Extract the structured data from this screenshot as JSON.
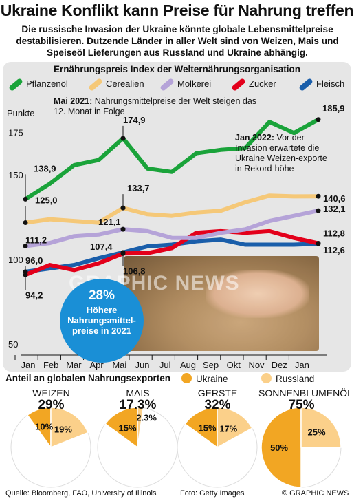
{
  "title": "Ukraine Konflikt kann Preise für Nahrung treffen",
  "subtitle": "Die russische Invasion der Ukraine könnte globale Lebensmittelpreise destabilisieren. Dutzende Länder in aller Welt sind von Weizen, Mais und Speiseöl Lieferungen aus Russland und Ukraine abhängig.",
  "chart_title": "Ernährungspreis Index der Welternährungsorganisation",
  "ylabel": "Punkte",
  "colors": {
    "pflanzenoel": "#1aa33a",
    "cerealien": "#f5c878",
    "molkerei": "#b5a3d8",
    "zucker": "#e3001b",
    "fleisch": "#1a5eaa",
    "ukraine": "#f2a623",
    "russland": "#fbd08a"
  },
  "chart_data": {
    "type": "line",
    "categories": [
      "Jan",
      "Feb",
      "Mar",
      "Apr",
      "Mai",
      "Jun",
      "Jul",
      "Aug",
      "Sep",
      "Okt",
      "Nov",
      "Dez",
      "Jan"
    ],
    "ylim": [
      50,
      185
    ],
    "yticks": [
      50,
      100,
      150,
      175
    ],
    "series": [
      {
        "name": "Pflanzenöl",
        "key": "pflanzenoel",
        "values": [
          138.9,
          148,
          159,
          162,
          174.9,
          157,
          155,
          166,
          168,
          169,
          184.5,
          178,
          185.9
        ]
      },
      {
        "name": "Cerealien",
        "key": "cerealien",
        "values": [
          125.0,
          127,
          126,
          125,
          133.7,
          130,
          129,
          131,
          132,
          137,
          141,
          140.5,
          140.6
        ]
      },
      {
        "name": "Molkerei",
        "key": "molkerei",
        "values": [
          111.2,
          113,
          117,
          118,
          121.1,
          120,
          116,
          116,
          119,
          121,
          126,
          129,
          132.1
        ]
      },
      {
        "name": "Zucker",
        "key": "zucker",
        "values": [
          94.2,
          100,
          97,
          101,
          106.8,
          107,
          110,
          119,
          120,
          119,
          120,
          116,
          112.8
        ]
      },
      {
        "name": "Fleisch",
        "key": "fleisch",
        "values": [
          96.0,
          98,
          100,
          104,
          107.4,
          111,
          112,
          114,
          115,
          112,
          112,
          112,
          112.6
        ]
      }
    ],
    "labels": [
      {
        "series": "pflanzenoel",
        "index": 0,
        "text": "138,9"
      },
      {
        "series": "pflanzenoel",
        "index": 4,
        "text": "174,9"
      },
      {
        "series": "pflanzenoel",
        "index": 12,
        "text": "185,9"
      },
      {
        "series": "cerealien",
        "index": 0,
        "text": "125,0"
      },
      {
        "series": "cerealien",
        "index": 4,
        "text": "133,7"
      },
      {
        "series": "cerealien",
        "index": 12,
        "text": "140,6"
      },
      {
        "series": "molkerei",
        "index": 0,
        "text": "111,2"
      },
      {
        "series": "molkerei",
        "index": 4,
        "text": "121,1"
      },
      {
        "series": "molkerei",
        "index": 12,
        "text": "132,1"
      },
      {
        "series": "zucker",
        "index": 0,
        "text": "94,2"
      },
      {
        "series": "zucker",
        "index": 4,
        "text": "106,8"
      },
      {
        "series": "zucker",
        "index": 12,
        "text": "112,8"
      },
      {
        "series": "fleisch",
        "index": 0,
        "text": "96,0"
      },
      {
        "series": "fleisch",
        "index": 4,
        "text": "107,4"
      },
      {
        "series": "fleisch",
        "index": 12,
        "text": "112,6"
      }
    ]
  },
  "annotations": {
    "mai_bold": "Mai 2021:",
    "mai_text": " Nahrungsmittelpreise der Welt steigen das 12. Monat in Folge",
    "jan_bold": "Jan 2022:",
    "jan_text": " Vor der Invasion erwartete die Ukraine Weizen-exporte in Rekord-höhe"
  },
  "callout": {
    "big": "28%",
    "small": "Höhere Nahrungsmittel-preise in 2021"
  },
  "watermark": "GRAPHIC NEWS",
  "share": {
    "title": "Anteil an globalen Nahrungsexporten",
    "ukraine_label": "Ukraine",
    "russland_label": "Russland",
    "pies": [
      {
        "name": "WEIZEN",
        "total": "29%",
        "ukraine": 10,
        "russland": 19,
        "ukraine_label": "10%",
        "russland_label": "19%"
      },
      {
        "name": "MAIS",
        "total": "17.3%",
        "ukraine": 15,
        "russland": 2.3,
        "ukraine_label": "15%",
        "russland_label": "2.3%"
      },
      {
        "name": "GERSTE",
        "total": "32%",
        "ukraine": 15,
        "russland": 17,
        "ukraine_label": "15%",
        "russland_label": "17%"
      },
      {
        "name": "SONNENBLUMENÖL",
        "total": "75%",
        "ukraine": 50,
        "russland": 25,
        "ukraine_label": "50%",
        "russland_label": "25%"
      }
    ]
  },
  "footer": {
    "source": "Quelle: Bloomberg, FAO, University of Illinois",
    "photo": "Foto: Getty Images",
    "copyright": "© GRAPHIC NEWS"
  }
}
